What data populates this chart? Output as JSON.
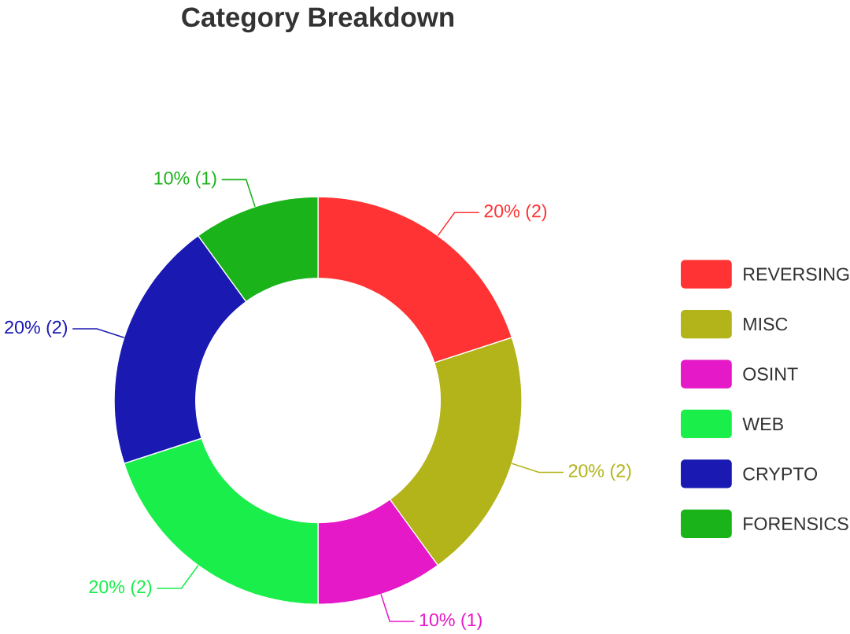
{
  "chart_data": {
    "type": "donut",
    "title": "Category Breakdown",
    "categories": [
      "REVERSING",
      "MISC",
      "OSINT",
      "WEB",
      "CRYPTO",
      "FORENSICS"
    ],
    "values": [
      2,
      2,
      1,
      2,
      2,
      1
    ],
    "colors": [
      "#ff3333",
      "#b3b31a",
      "#e619c8",
      "#1aee4a",
      "#1a1ab3",
      "#1ab31a"
    ],
    "value_labels": [
      "20% (2)",
      "20% (2)",
      "10% (1)",
      "20% (2)",
      "20% (2)",
      "10% (1)"
    ],
    "legend": "right"
  }
}
